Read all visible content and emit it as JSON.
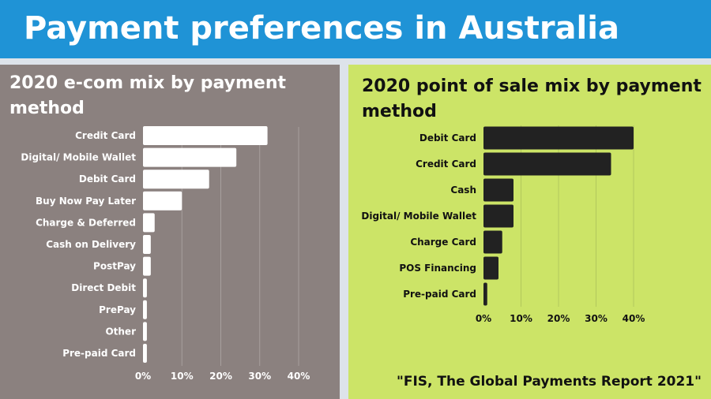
{
  "header": {
    "title": "Payment preferences in Australia"
  },
  "colors": {
    "header_bg": "#1f93d6",
    "left_panel_bg": "#8b817f",
    "right_panel_bg": "#cce467",
    "left_bars": "#ffffff",
    "right_bars": "#222222"
  },
  "left_panel": {
    "title": "2020 e-com mix by payment method"
  },
  "right_panel": {
    "title": "2020 point of sale mix by payment method",
    "source": "\"FIS, The Global Payments Report 2021\""
  },
  "chart_data": [
    {
      "type": "bar",
      "orientation": "horizontal",
      "title": "2020 e-com mix by payment method",
      "categories": [
        "Credit Card",
        "Digital/ Mobile Wallet",
        "Debit Card",
        "Buy Now Pay Later",
        "Charge & Deferred",
        "Cash on Delivery",
        "PostPay",
        "Direct Debit",
        "PrePay",
        "Other",
        "Pre-paid Card"
      ],
      "values": [
        32,
        24,
        17,
        10,
        3,
        2,
        2,
        1,
        1,
        1,
        1
      ],
      "xlim": [
        0,
        40
      ],
      "xticks": [
        "0%",
        "10%",
        "20%",
        "30%",
        "40%"
      ],
      "grid": true,
      "legend": false
    },
    {
      "type": "bar",
      "orientation": "horizontal",
      "title": "2020 point of sale mix by payment method",
      "categories": [
        "Debit Card",
        "Credit Card",
        "Cash",
        "Digital/ Mobile Wallet",
        "Charge Card",
        "POS Financing",
        "Pre-paid Card"
      ],
      "values": [
        40,
        34,
        8,
        8,
        5,
        4,
        1
      ],
      "xlim": [
        0,
        40
      ],
      "xticks": [
        "0%",
        "10%",
        "20%",
        "30%",
        "40%"
      ],
      "grid": true,
      "legend": false
    }
  ]
}
